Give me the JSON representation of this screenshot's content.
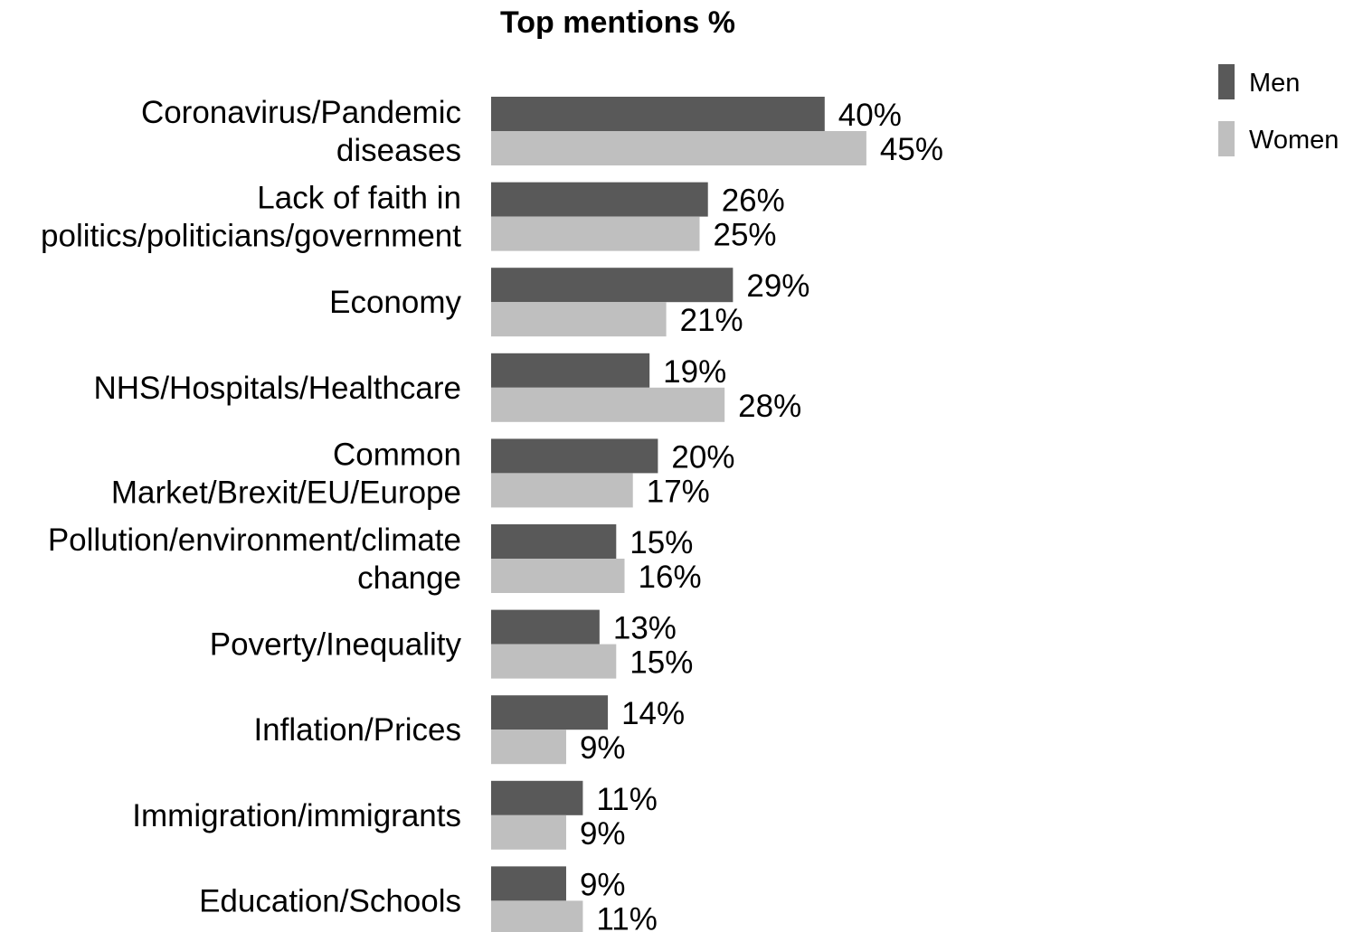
{
  "chart_data": {
    "type": "bar",
    "orientation": "horizontal",
    "title": "Top mentions %",
    "xlabel": "",
    "ylabel": "",
    "xlim": [
      0,
      100
    ],
    "grid": false,
    "legend_position": "top-right",
    "value_suffix": "%",
    "categories": [
      [
        "Coronavirus/Pandemic",
        "diseases"
      ],
      [
        "Lack of faith in",
        "politics/politicians/government"
      ],
      [
        "Economy"
      ],
      [
        "NHS/Hospitals/Healthcare"
      ],
      [
        "Common",
        "Market/Brexit/EU/Europe"
      ],
      [
        "Pollution/environment/climate",
        "change"
      ],
      [
        "Poverty/Inequality"
      ],
      [
        "Inflation/Prices"
      ],
      [
        "Immigration/immigrants"
      ],
      [
        "Education/Schools"
      ]
    ],
    "series": [
      {
        "name": "Men",
        "color": "#595959",
        "values": [
          40,
          26,
          29,
          19,
          20,
          15,
          13,
          14,
          11,
          9
        ]
      },
      {
        "name": "Women",
        "color": "#bfbfbf",
        "values": [
          45,
          25,
          21,
          28,
          17,
          16,
          15,
          9,
          9,
          11
        ]
      }
    ]
  }
}
